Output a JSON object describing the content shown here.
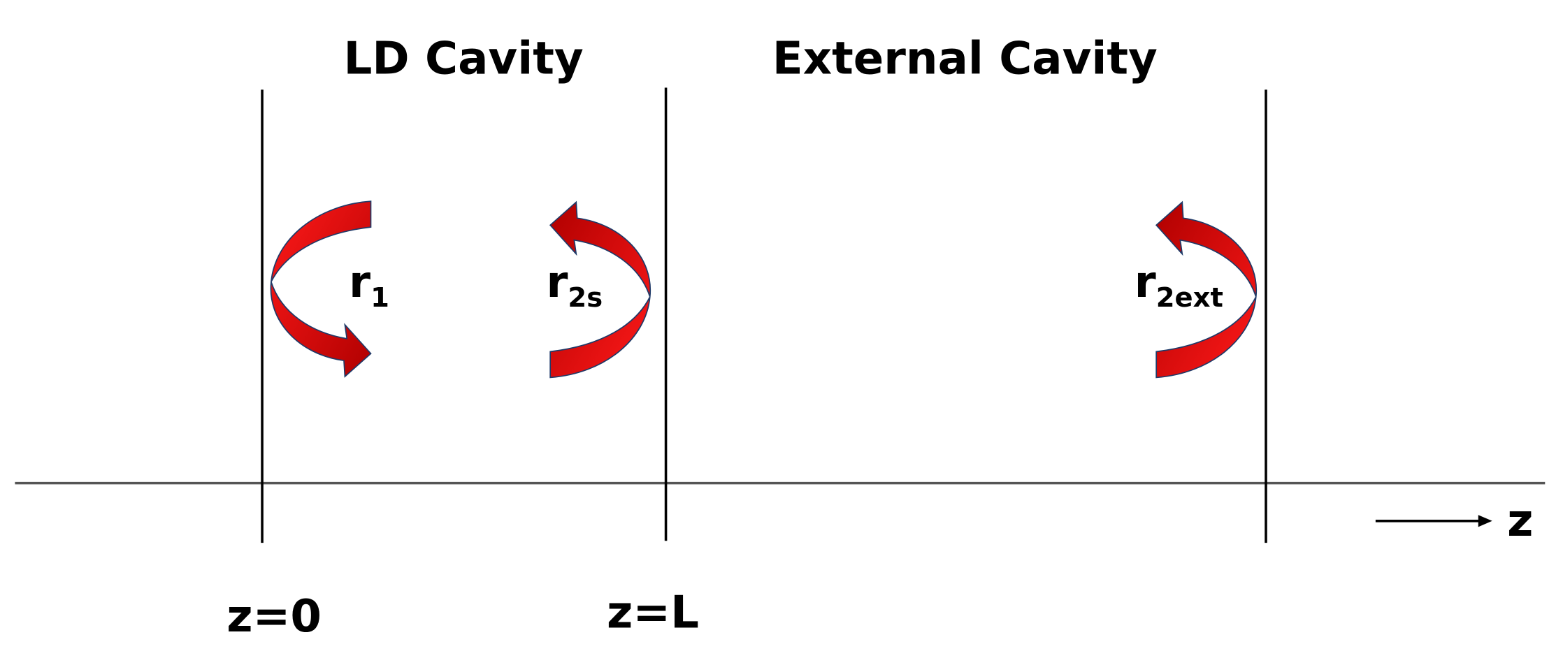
{
  "regions": [
    {
      "label": "LD Cavity"
    },
    {
      "label": "External Cavity"
    }
  ],
  "mirrors": [
    {
      "symbol": "r",
      "subscript": "1",
      "position": "z=0"
    },
    {
      "symbol": "r",
      "subscript": "2s",
      "position": "z=L"
    },
    {
      "symbol": "r",
      "subscript": "2ext"
    }
  ],
  "axis_label": "z"
}
